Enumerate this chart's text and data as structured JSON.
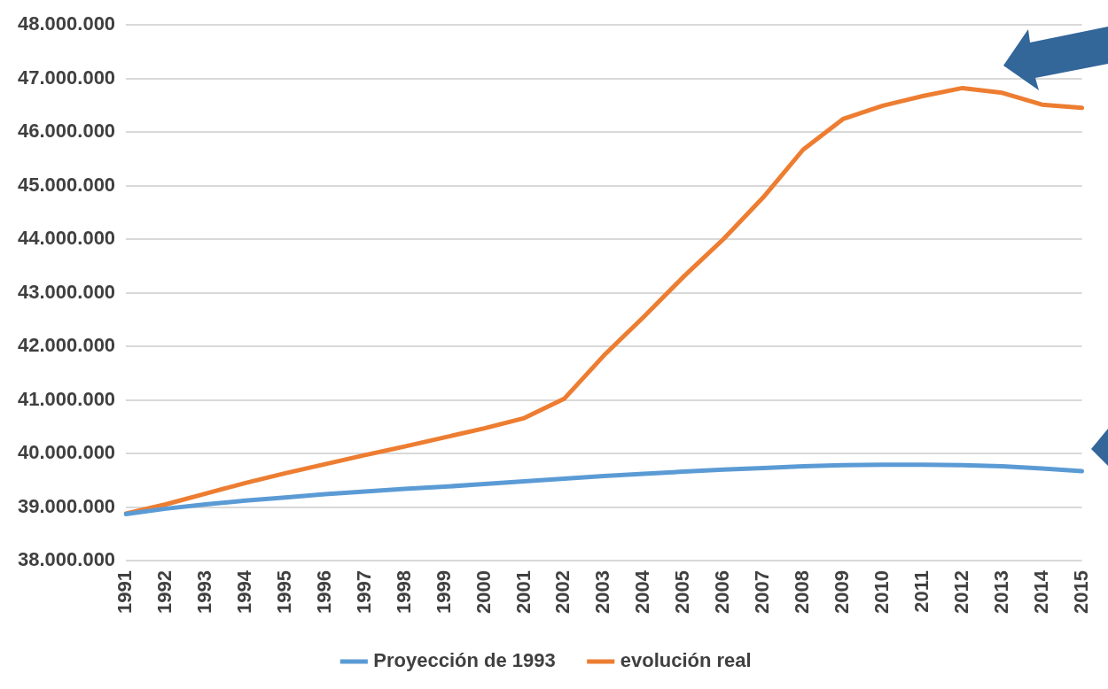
{
  "chart_data": {
    "type": "line",
    "categories": [
      "1991",
      "1992",
      "1993",
      "1994",
      "1995",
      "1996",
      "1997",
      "1998",
      "1999",
      "2000",
      "2001",
      "2002",
      "2003",
      "2004",
      "2005",
      "2006",
      "2007",
      "2008",
      "2009",
      "2010",
      "2011",
      "2012",
      "2013",
      "2014",
      "2015"
    ],
    "series": [
      {
        "name": "Proyección de 1993",
        "color": "#5b9bd5",
        "values": [
          38870000,
          38970000,
          39050000,
          39120000,
          39180000,
          39240000,
          39290000,
          39340000,
          39380000,
          39430000,
          39480000,
          39530000,
          39580000,
          39620000,
          39660000,
          39700000,
          39730000,
          39760000,
          39780000,
          39790000,
          39790000,
          39780000,
          39760000,
          39720000,
          39670000
        ]
      },
      {
        "name": "evolución real",
        "color": "#ed7d31",
        "values": [
          38880000,
          39050000,
          39250000,
          39450000,
          39630000,
          39800000,
          39970000,
          40130000,
          40300000,
          40470000,
          40660000,
          41020000,
          41830000,
          42550000,
          43300000,
          44000000,
          44780000,
          45670000,
          46240000,
          46490000,
          46670000,
          46820000,
          46730000,
          46510000,
          46450000
        ]
      }
    ],
    "ylim": [
      38000000,
      48000000
    ],
    "yticks": [
      {
        "value": 38000000,
        "label": "38.000.000"
      },
      {
        "value": 39000000,
        "label": "39.000.000"
      },
      {
        "value": 40000000,
        "label": "40.000.000"
      },
      {
        "value": 41000000,
        "label": "41.000.000"
      },
      {
        "value": 42000000,
        "label": "42.000.000"
      },
      {
        "value": 43000000,
        "label": "43.000.000"
      },
      {
        "value": 44000000,
        "label": "44.000.000"
      },
      {
        "value": 45000000,
        "label": "45.000.000"
      },
      {
        "value": 46000000,
        "label": "46.000.000"
      },
      {
        "value": 47000000,
        "label": "47.000.000"
      },
      {
        "value": 48000000,
        "label": "48.000.000"
      }
    ],
    "grid": "y",
    "legend": "bottom",
    "marker": "none",
    "line_style": "solid"
  }
}
